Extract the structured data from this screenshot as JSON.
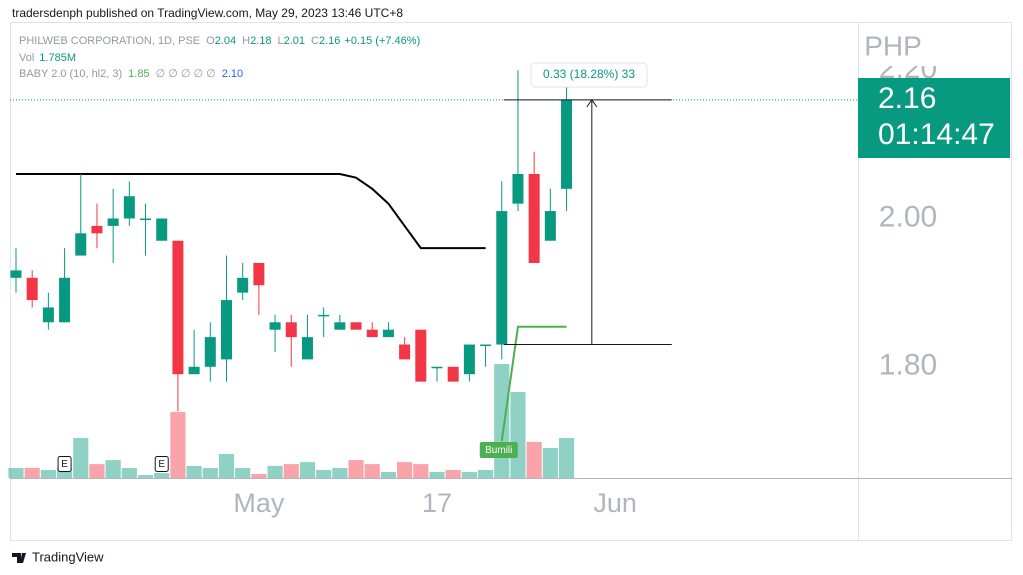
{
  "header": "tradersdenph published on TradingView.com, May 29, 2023 13:46 UTC+8",
  "footer": "TradingView",
  "legend": {
    "symbol": "PHILWEB CORPORATION, 1D, PSE",
    "ohlc": [
      {
        "key": "O",
        "value": "2.04"
      },
      {
        "key": "H",
        "value": "2.18"
      },
      {
        "key": "L",
        "value": "2.01"
      },
      {
        "key": "C",
        "value": "2.16"
      }
    ],
    "change": "+0.15 (+7.46%)",
    "volume_key": "Vol",
    "volume_value": "1.785M",
    "indicator": "BABY 2.0 (10, hl2, 3)",
    "indicator_low": "1.85",
    "indicator_empty": "∅ ∅ ∅ ∅ ∅",
    "indicator_high": "2.10"
  },
  "chart_data": {
    "type": "candlestick",
    "currency": "PHP",
    "last_price": {
      "value": 2.16,
      "label": "2.16",
      "countdown": "01:14:47"
    },
    "up_color": "#089981",
    "down_color": "#f23645",
    "xlim": [
      -0.37,
      52
    ],
    "xticks": [
      {
        "value": 15,
        "label": "May"
      },
      {
        "value": 26,
        "label": "17"
      },
      {
        "value": 37,
        "label": "Jun"
      }
    ],
    "ylim": [
      1.65,
      2.265
    ],
    "yticks": [
      {
        "value": 1.8,
        "label": "1.80"
      },
      {
        "value": 2.0,
        "label": "2.00"
      },
      {
        "value": 2.2,
        "label": "2.20"
      }
    ],
    "open": [
      1.92,
      1.92,
      1.86,
      1.86,
      1.95,
      1.99,
      1.99,
      2.0,
      2.0,
      1.97,
      1.97,
      1.79,
      1.8,
      1.81,
      1.9,
      1.94,
      1.85,
      1.86,
      1.81,
      1.87,
      1.85,
      1.86,
      1.85,
      1.84,
      1.83,
      1.85,
      1.8,
      1.8,
      1.79,
      1.83,
      1.83,
      2.02,
      2.06,
      1.97,
      2.04
    ],
    "high": [
      1.96,
      1.93,
      1.9,
      1.96,
      2.06,
      2.02,
      2.04,
      2.05,
      2.02,
      2.0,
      1.97,
      1.85,
      1.86,
      1.95,
      1.94,
      1.94,
      1.87,
      1.87,
      1.87,
      1.88,
      1.87,
      1.86,
      1.86,
      1.86,
      1.84,
      1.85,
      1.8,
      1.8,
      1.83,
      1.83,
      2.05,
      2.2,
      2.09,
      2.04,
      2.18
    ],
    "low": [
      1.9,
      1.88,
      1.85,
      1.86,
      1.95,
      1.96,
      1.94,
      1.99,
      1.95,
      1.97,
      1.74,
      1.79,
      1.78,
      1.78,
      1.89,
      1.87,
      1.82,
      1.8,
      1.81,
      1.84,
      1.85,
      1.85,
      1.84,
      1.84,
      1.81,
      1.78,
      1.78,
      1.78,
      1.78,
      1.8,
      1.81,
      2.01,
      1.94,
      1.97,
      2.01
    ],
    "close": [
      1.93,
      1.89,
      1.88,
      1.92,
      1.98,
      1.98,
      2.0,
      2.03,
      2.0,
      2.0,
      1.79,
      1.8,
      1.84,
      1.89,
      1.92,
      1.91,
      1.86,
      1.84,
      1.84,
      1.87,
      1.86,
      1.85,
      1.84,
      1.85,
      1.81,
      1.78,
      1.8,
      1.78,
      1.83,
      1.83,
      2.01,
      2.06,
      1.94,
      2.01,
      2.16
    ],
    "volume": [
      0.45,
      0.45,
      0.36,
      0.45,
      1.785,
      0.62,
      0.8,
      0.45,
      0.13,
      0.22,
      2.95,
      0.54,
      0.45,
      1.07,
      0.45,
      0.18,
      0.54,
      0.62,
      0.71,
      0.36,
      0.45,
      0.8,
      0.62,
      0.27,
      0.71,
      0.62,
      0.27,
      0.36,
      0.27,
      0.36,
      5.09,
      3.84,
      1.61,
      1.34,
      1.785
    ],
    "lines": [
      {
        "name": "upper",
        "color": "#000000",
        "values": [
          2.06,
          2.06,
          2.06,
          2.06,
          2.06,
          2.06,
          2.06,
          2.06,
          2.06,
          2.06,
          2.06,
          2.06,
          2.06,
          2.06,
          2.06,
          2.06,
          2.06,
          2.06,
          2.06,
          2.06,
          2.06,
          2.055,
          2.04,
          2.02,
          1.99,
          1.96,
          1.96,
          1.96,
          1.96,
          1.96,
          null,
          null,
          null,
          null,
          null
        ]
      },
      {
        "name": "lower",
        "color": "#4caf50",
        "values": [
          null,
          null,
          null,
          null,
          null,
          null,
          null,
          null,
          null,
          null,
          null,
          null,
          null,
          null,
          null,
          null,
          null,
          null,
          null,
          null,
          null,
          null,
          null,
          null,
          null,
          null,
          null,
          null,
          null,
          null,
          1.7,
          1.854,
          1.854,
          1.854,
          1.854
        ]
      }
    ],
    "events": [
      {
        "index": 3,
        "label": "E"
      },
      {
        "index": 9,
        "label": "E"
      }
    ],
    "signal": {
      "index": 30,
      "label": "Bumili"
    },
    "measure": {
      "from": 1.83,
      "to": 2.16,
      "start": 30.5,
      "end": 40.5,
      "label": "0.33 (18.28%) 33"
    }
  }
}
